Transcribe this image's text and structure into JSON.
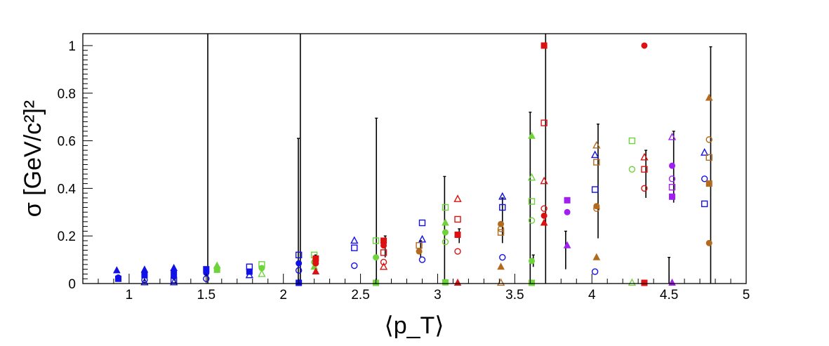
{
  "chart_data": {
    "type": "scatter",
    "title": "",
    "xlabel": "⟨p_T⟩",
    "ylabel": "σ [GeV/c²]²",
    "xlim": [
      0.7,
      5.0
    ],
    "ylim": [
      0.0,
      1.05
    ],
    "x_ticks": [
      "1",
      "1.5",
      "2",
      "2.5",
      "3",
      "3.5",
      "4",
      "4.5",
      "5"
    ],
    "y_ticks": [
      "0",
      "0.2",
      "0.4",
      "0.6",
      "0.8",
      "1"
    ],
    "grid": false,
    "legend": "none",
    "colors": {
      "blue": "#1010e8",
      "green": "#6fd33a",
      "red": "#dd1111",
      "brown": "#b26a1e",
      "purple": "#a020f0",
      "errorbar": "#000000"
    },
    "series": [
      {
        "color": "blue",
        "points": [
          {
            "x": 0.92,
            "y": 0.055,
            "marker": "triangle-filled"
          },
          {
            "x": 0.93,
            "y": 0.025,
            "marker": "circle-filled"
          },
          {
            "x": 0.93,
            "y": 0.02,
            "marker": "square-filled"
          },
          {
            "x": 1.1,
            "y": 0.058,
            "marker": "triangle-filled"
          },
          {
            "x": 1.1,
            "y": 0.035,
            "marker": "square-filled"
          },
          {
            "x": 1.1,
            "y": 0.015,
            "marker": "circle-open"
          },
          {
            "x": 1.1,
            "y": 0.005,
            "marker": "triangle-open"
          },
          {
            "x": 1.29,
            "y": 0.065,
            "marker": "triangle-filled"
          },
          {
            "x": 1.29,
            "y": 0.045,
            "marker": "square-filled"
          },
          {
            "x": 1.29,
            "y": 0.03,
            "marker": "circle-filled"
          },
          {
            "x": 1.29,
            "y": 0.015,
            "marker": "square-open"
          },
          {
            "x": 1.29,
            "y": 0.005,
            "marker": "triangle-open"
          },
          {
            "x": 1.5,
            "y": 0.06,
            "marker": "square-filled"
          },
          {
            "x": 1.5,
            "y": 0.045,
            "marker": "circle-filled"
          },
          {
            "x": 1.5,
            "y": 0.02,
            "marker": "circle-open"
          },
          {
            "x": 1.78,
            "y": 0.07,
            "marker": "square-open"
          },
          {
            "x": 1.78,
            "y": 0.05,
            "marker": "square-filled"
          },
          {
            "x": 1.78,
            "y": 0.035,
            "marker": "triangle-open"
          },
          {
            "x": 2.1,
            "y": 0.12,
            "marker": "square-open"
          },
          {
            "x": 2.1,
            "y": 0.085,
            "marker": "circle-filled"
          },
          {
            "x": 2.1,
            "y": 0.055,
            "marker": "circle-open"
          },
          {
            "x": 2.1,
            "y": 0.003,
            "marker": "square-filled"
          },
          {
            "x": 2.46,
            "y": 0.18,
            "marker": "triangle-open"
          },
          {
            "x": 2.46,
            "y": 0.15,
            "marker": "square-open"
          },
          {
            "x": 2.46,
            "y": 0.075,
            "marker": "circle-open"
          },
          {
            "x": 2.9,
            "y": 0.255,
            "marker": "square-open"
          },
          {
            "x": 2.9,
            "y": 0.185,
            "marker": "triangle-open"
          },
          {
            "x": 2.9,
            "y": 0.1,
            "marker": "circle-open"
          },
          {
            "x": 3.42,
            "y": 0.365,
            "marker": "triangle-open"
          },
          {
            "x": 3.42,
            "y": 0.32,
            "marker": "square-open"
          },
          {
            "x": 3.42,
            "y": 0.11,
            "marker": "circle-open"
          },
          {
            "x": 4.02,
            "y": 0.54,
            "marker": "triangle-open"
          },
          {
            "x": 4.02,
            "y": 0.395,
            "marker": "square-open"
          },
          {
            "x": 4.02,
            "y": 0.05,
            "marker": "circle-open"
          },
          {
            "x": 4.73,
            "y": 0.55,
            "marker": "triangle-open"
          },
          {
            "x": 4.73,
            "y": 0.44,
            "marker": "circle-open"
          },
          {
            "x": 4.73,
            "y": 0.335,
            "marker": "square-open"
          }
        ]
      },
      {
        "color": "green",
        "points": [
          {
            "x": 1.57,
            "y": 0.075,
            "marker": "triangle-filled"
          },
          {
            "x": 1.57,
            "y": 0.058,
            "marker": "square-filled"
          },
          {
            "x": 1.86,
            "y": 0.08,
            "marker": "square-open"
          },
          {
            "x": 1.86,
            "y": 0.065,
            "marker": "circle-filled"
          },
          {
            "x": 1.86,
            "y": 0.04,
            "marker": "triangle-open"
          },
          {
            "x": 2.2,
            "y": 0.12,
            "marker": "square-open"
          },
          {
            "x": 2.2,
            "y": 0.09,
            "marker": "circle-filled"
          },
          {
            "x": 2.2,
            "y": 0.07,
            "marker": "triangle-filled"
          },
          {
            "x": 2.6,
            "y": 0.18,
            "marker": "square-open"
          },
          {
            "x": 2.6,
            "y": 0.11,
            "marker": "circle-filled"
          },
          {
            "x": 2.6,
            "y": 0.003,
            "marker": "square-filled"
          },
          {
            "x": 3.05,
            "y": 0.32,
            "marker": "square-open"
          },
          {
            "x": 3.05,
            "y": 0.255,
            "marker": "triangle-filled"
          },
          {
            "x": 3.05,
            "y": 0.215,
            "marker": "circle-filled"
          },
          {
            "x": 3.05,
            "y": 0.175,
            "marker": "circle-open"
          },
          {
            "x": 3.05,
            "y": 0.005,
            "marker": "square-filled"
          },
          {
            "x": 3.61,
            "y": 0.62,
            "marker": "triangle-filled"
          },
          {
            "x": 3.61,
            "y": 0.445,
            "marker": "triangle-open"
          },
          {
            "x": 3.61,
            "y": 0.345,
            "marker": "square-open"
          },
          {
            "x": 3.61,
            "y": 0.265,
            "marker": "circle-open"
          },
          {
            "x": 3.61,
            "y": 0.095,
            "marker": "circle-filled"
          },
          {
            "x": 3.61,
            "y": 0.003,
            "marker": "square-filled"
          },
          {
            "x": 4.26,
            "y": 0.6,
            "marker": "square-open"
          },
          {
            "x": 4.26,
            "y": 0.48,
            "marker": "circle-open"
          },
          {
            "x": 4.26,
            "y": 0.003,
            "marker": "triangle-open"
          }
        ]
      },
      {
        "color": "red",
        "points": [
          {
            "x": 2.21,
            "y": 0.105,
            "marker": "square-filled"
          },
          {
            "x": 2.21,
            "y": 0.085,
            "marker": "circle-filled"
          },
          {
            "x": 2.21,
            "y": 0.05,
            "marker": "triangle-filled"
          },
          {
            "x": 2.65,
            "y": 0.18,
            "marker": "square-filled"
          },
          {
            "x": 2.65,
            "y": 0.16,
            "marker": "circle-filled"
          },
          {
            "x": 2.65,
            "y": 0.13,
            "marker": "square-open"
          },
          {
            "x": 2.65,
            "y": 0.09,
            "marker": "circle-open"
          },
          {
            "x": 2.65,
            "y": 0.07,
            "marker": "triangle-open"
          },
          {
            "x": 3.13,
            "y": 0.355,
            "marker": "triangle-open"
          },
          {
            "x": 3.13,
            "y": 0.27,
            "marker": "square-open"
          },
          {
            "x": 3.13,
            "y": 0.205,
            "marker": "square-filled"
          },
          {
            "x": 3.13,
            "y": 0.135,
            "marker": "circle-open"
          },
          {
            "x": 3.13,
            "y": 0.003,
            "marker": "triangle-filled"
          },
          {
            "x": 3.69,
            "y": 1.0,
            "marker": "square-filled"
          },
          {
            "x": 3.69,
            "y": 0.675,
            "marker": "square-open"
          },
          {
            "x": 3.69,
            "y": 0.43,
            "marker": "triangle-open"
          },
          {
            "x": 3.69,
            "y": 0.315,
            "marker": "circle-open"
          },
          {
            "x": 3.69,
            "y": 0.285,
            "marker": "circle-filled"
          },
          {
            "x": 3.69,
            "y": 0.255,
            "marker": "triangle-filled"
          },
          {
            "x": 4.34,
            "y": 1.0,
            "marker": "circle-filled"
          },
          {
            "x": 4.34,
            "y": 0.53,
            "marker": "triangle-open"
          },
          {
            "x": 4.34,
            "y": 0.48,
            "marker": "square-open"
          },
          {
            "x": 4.34,
            "y": 0.4,
            "marker": "circle-open"
          },
          {
            "x": 4.34,
            "y": 0.003,
            "marker": "square-filled"
          }
        ]
      },
      {
        "color": "brown",
        "points": [
          {
            "x": 2.88,
            "y": 0.16,
            "marker": "square-open"
          },
          {
            "x": 2.88,
            "y": 0.135,
            "marker": "circle-filled"
          },
          {
            "x": 3.41,
            "y": 0.25,
            "marker": "circle-filled"
          },
          {
            "x": 3.41,
            "y": 0.23,
            "marker": "circle-open"
          },
          {
            "x": 3.41,
            "y": 0.215,
            "marker": "square-open"
          },
          {
            "x": 3.41,
            "y": 0.07,
            "marker": "triangle-filled"
          },
          {
            "x": 3.41,
            "y": 0.003,
            "marker": "triangle-open"
          },
          {
            "x": 4.03,
            "y": 0.58,
            "marker": "triangle-open"
          },
          {
            "x": 4.03,
            "y": 0.51,
            "marker": "square-open"
          },
          {
            "x": 4.03,
            "y": 0.325,
            "marker": "circle-filled"
          },
          {
            "x": 4.03,
            "y": 0.315,
            "marker": "circle-open"
          },
          {
            "x": 4.03,
            "y": 0.11,
            "marker": "triangle-filled"
          },
          {
            "x": 4.76,
            "y": 0.78,
            "marker": "triangle-filled"
          },
          {
            "x": 4.76,
            "y": 0.605,
            "marker": "circle-open"
          },
          {
            "x": 4.76,
            "y": 0.53,
            "marker": "square-open"
          },
          {
            "x": 4.76,
            "y": 0.42,
            "marker": "square-filled"
          },
          {
            "x": 4.76,
            "y": 0.17,
            "marker": "circle-filled"
          }
        ]
      },
      {
        "color": "purple",
        "points": [
          {
            "x": 3.84,
            "y": 0.35,
            "marker": "square-filled"
          },
          {
            "x": 3.84,
            "y": 0.3,
            "marker": "circle-filled"
          },
          {
            "x": 3.84,
            "y": 0.16,
            "marker": "triangle-filled"
          },
          {
            "x": 4.52,
            "y": 0.615,
            "marker": "triangle-open"
          },
          {
            "x": 4.52,
            "y": 0.495,
            "marker": "circle-filled"
          },
          {
            "x": 4.52,
            "y": 0.44,
            "marker": "circle-open"
          },
          {
            "x": 4.52,
            "y": 0.405,
            "marker": "square-open"
          },
          {
            "x": 4.52,
            "y": 0.365,
            "marker": "square-filled"
          },
          {
            "x": 4.52,
            "y": 0.003,
            "marker": "triangle-filled"
          }
        ]
      }
    ],
    "error_bars": [
      {
        "x": 1.51,
        "lo": 0.0,
        "hi": 1.05
      },
      {
        "x": 2.11,
        "lo": 0.0,
        "hi": 1.05
      },
      {
        "x": 3.7,
        "lo": 0.0,
        "hi": 1.05
      },
      {
        "x": 2.097,
        "lo": 0.0,
        "hi": 0.61
      },
      {
        "x": 2.603,
        "lo": 0.0,
        "hi": 0.695
      },
      {
        "x": 3.045,
        "lo": 0.0,
        "hi": 0.45
      },
      {
        "x": 3.6,
        "lo": 0.0,
        "hi": 0.72
      },
      {
        "x": 4.5,
        "lo": 0.0,
        "hi": 0.11
      },
      {
        "x": 4.77,
        "lo": 0.0,
        "hi": 0.995
      },
      {
        "x": 4.04,
        "lo": 0.19,
        "hi": 0.67
      },
      {
        "x": 3.83,
        "lo": 0.06,
        "hi": 0.22
      },
      {
        "x": 4.35,
        "lo": 0.36,
        "hi": 0.56
      },
      {
        "x": 4.53,
        "lo": 0.34,
        "hi": 0.64
      },
      {
        "x": 3.42,
        "lo": 0.17,
        "hi": 0.36
      },
      {
        "x": 3.14,
        "lo": 0.17,
        "hi": 0.23
      },
      {
        "x": 2.66,
        "lo": 0.11,
        "hi": 0.2
      },
      {
        "x": 2.89,
        "lo": 0.11,
        "hi": 0.18
      },
      {
        "x": 2.21,
        "lo": 0.04,
        "hi": 0.12
      },
      {
        "x": 3.62,
        "lo": 0.07,
        "hi": 0.12
      }
    ]
  }
}
